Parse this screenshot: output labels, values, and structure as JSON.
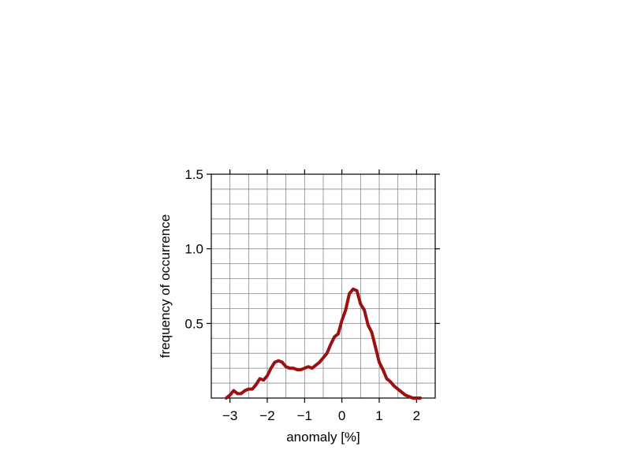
{
  "chart_data": {
    "type": "line",
    "title": "",
    "xlabel": "anomaly [%]",
    "ylabel": "frequency of occurrence",
    "xlim": [
      -3.5,
      2.5
    ],
    "ylim": [
      0,
      1.5
    ],
    "grid": true,
    "x_ticks": [
      -3,
      -2,
      -1,
      0,
      1,
      2
    ],
    "x_tick_labels": [
      "−3",
      "−2",
      "−1",
      "0",
      "1",
      "2"
    ],
    "y_ticks": [
      0.5,
      1.0,
      1.5
    ],
    "y_tick_labels": [
      "0.5",
      "1.0",
      "1.5"
    ],
    "color": "#9b1010",
    "series": [
      {
        "x": [
          -3.1,
          -3.0,
          -2.9,
          -2.8,
          -2.7,
          -2.6,
          -2.5,
          -2.4,
          -2.3,
          -2.2,
          -2.1,
          -2.0,
          -1.9,
          -1.8,
          -1.7,
          -1.6,
          -1.5,
          -1.4,
          -1.3,
          -1.2,
          -1.1,
          -1.0,
          -0.9,
          -0.8,
          -0.7,
          -0.6,
          -0.5,
          -0.4,
          -0.3,
          -0.2,
          -0.1,
          0.0,
          0.1,
          0.2,
          0.3,
          0.4,
          0.5,
          0.6,
          0.7,
          0.8,
          0.9,
          1.0,
          1.1,
          1.2,
          1.3,
          1.4,
          1.5,
          1.6,
          1.7,
          1.8,
          1.9,
          2.0,
          2.1
        ],
        "y": [
          0.0,
          0.02,
          0.05,
          0.03,
          0.03,
          0.05,
          0.06,
          0.06,
          0.09,
          0.13,
          0.12,
          0.15,
          0.2,
          0.24,
          0.25,
          0.24,
          0.21,
          0.2,
          0.2,
          0.19,
          0.19,
          0.2,
          0.21,
          0.2,
          0.22,
          0.24,
          0.27,
          0.3,
          0.36,
          0.41,
          0.43,
          0.52,
          0.59,
          0.7,
          0.73,
          0.72,
          0.63,
          0.59,
          0.49,
          0.44,
          0.34,
          0.24,
          0.19,
          0.13,
          0.11,
          0.08,
          0.06,
          0.04,
          0.02,
          0.01,
          0.0,
          0.0,
          0.0
        ]
      }
    ]
  }
}
